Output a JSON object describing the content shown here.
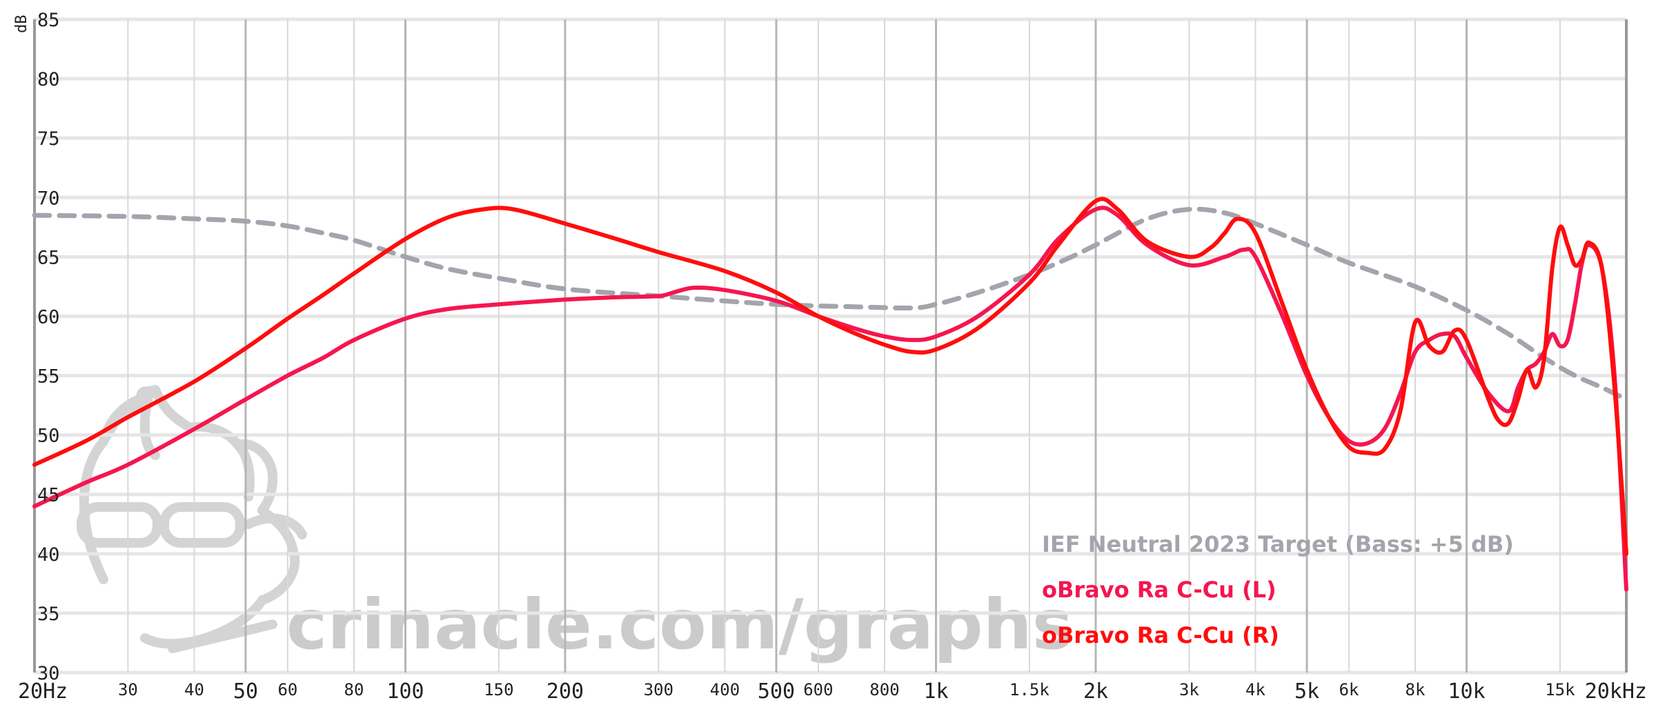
{
  "chart_data": {
    "type": "line",
    "xscale": "log",
    "xlim": [
      20,
      20000
    ],
    "ylim": [
      30,
      85
    ],
    "ylabel": "dB",
    "yticks": [
      "85",
      "80",
      "75",
      "70",
      "65",
      "60",
      "55",
      "50",
      "45",
      "40",
      "35",
      "30"
    ],
    "xticks": [
      {
        "v": 20,
        "label": "20Hz",
        "major": true
      },
      {
        "v": 30,
        "label": "30",
        "major": false
      },
      {
        "v": 40,
        "label": "40",
        "major": false
      },
      {
        "v": 50,
        "label": "50",
        "major": true
      },
      {
        "v": 60,
        "label": "60",
        "major": false
      },
      {
        "v": 80,
        "label": "80",
        "major": false
      },
      {
        "v": 100,
        "label": "100",
        "major": true
      },
      {
        "v": 150,
        "label": "150",
        "major": false
      },
      {
        "v": 200,
        "label": "200",
        "major": true
      },
      {
        "v": 300,
        "label": "300",
        "major": false
      },
      {
        "v": 400,
        "label": "400",
        "major": false
      },
      {
        "v": 500,
        "label": "500",
        "major": true
      },
      {
        "v": 600,
        "label": "600",
        "major": false
      },
      {
        "v": 800,
        "label": "800",
        "major": false
      },
      {
        "v": 1000,
        "label": "1k",
        "major": true
      },
      {
        "v": 1500,
        "label": "1.5k",
        "major": false
      },
      {
        "v": 2000,
        "label": "2k",
        "major": true
      },
      {
        "v": 3000,
        "label": "3k",
        "major": false
      },
      {
        "v": 4000,
        "label": "4k",
        "major": false
      },
      {
        "v": 5000,
        "label": "5k",
        "major": true
      },
      {
        "v": 6000,
        "label": "6k",
        "major": false
      },
      {
        "v": 8000,
        "label": "8k",
        "major": false
      },
      {
        "v": 10000,
        "label": "10k",
        "major": true
      },
      {
        "v": 15000,
        "label": "15k",
        "major": false
      },
      {
        "v": 20000,
        "label": "20kHz",
        "major": true
      }
    ],
    "legend_position": "bottom-right",
    "watermark": "crinacle.com/graphs",
    "series": [
      {
        "name": "IEF Neutral 2023 Target (Bass: +5 dB)",
        "color": "#a4a4ad",
        "dashed": true,
        "x": [
          20,
          30,
          40,
          50,
          60,
          70,
          80,
          100,
          120,
          150,
          200,
          300,
          500,
          700,
          900,
          1000,
          1200,
          1500,
          1800,
          2000,
          2500,
          3000,
          3500,
          4000,
          5000,
          6000,
          8000,
          10000,
          12000,
          14000,
          16000,
          18000,
          20000
        ],
        "y": [
          68.5,
          68.4,
          68.2,
          68.0,
          67.6,
          67.0,
          66.4,
          65.0,
          64.0,
          63.2,
          62.3,
          61.7,
          61.0,
          60.8,
          60.7,
          61.0,
          62.0,
          63.5,
          65.0,
          66.0,
          68.2,
          69.0,
          68.7,
          67.8,
          66.0,
          64.5,
          62.5,
          60.5,
          58.5,
          56.5,
          55.0,
          54.0,
          53.0
        ]
      },
      {
        "name": "oBravo Ra C-Cu (L)",
        "color": "#f5164f",
        "dashed": false,
        "x": [
          20,
          25,
          30,
          40,
          50,
          60,
          70,
          80,
          100,
          120,
          150,
          200,
          250,
          300,
          320,
          350,
          400,
          500,
          600,
          700,
          800,
          900,
          1000,
          1200,
          1500,
          1700,
          2000,
          2200,
          2500,
          3000,
          3500,
          3800,
          4000,
          4500,
          5000,
          5500,
          6000,
          6500,
          7000,
          7500,
          8000,
          8500,
          9000,
          9500,
          10000,
          11000,
          12000,
          12500,
          13000,
          13500,
          14000,
          14500,
          15000,
          15500,
          16000,
          16500,
          17000,
          18000,
          19000,
          20000
        ],
        "y": [
          44.0,
          46.0,
          47.5,
          50.5,
          53.0,
          55.0,
          56.5,
          58.0,
          59.8,
          60.6,
          61.0,
          61.4,
          61.6,
          61.7,
          62.0,
          62.4,
          62.2,
          61.3,
          60.0,
          59.0,
          58.3,
          58.0,
          58.3,
          60.0,
          63.5,
          66.5,
          69.0,
          68.5,
          66.0,
          64.3,
          65.0,
          65.6,
          65.0,
          60.0,
          55.0,
          51.5,
          49.5,
          49.3,
          50.5,
          53.5,
          57.0,
          58.0,
          58.5,
          58.3,
          56.5,
          53.5,
          52.0,
          54.0,
          55.5,
          56.0,
          57.0,
          58.5,
          57.5,
          58.0,
          61.0,
          64.5,
          66.0,
          64.0,
          55.0,
          37.0
        ]
      },
      {
        "name": "oBravo Ra C-Cu (R)",
        "color": "#ff0d0d",
        "dashed": false,
        "x": [
          20,
          25,
          30,
          40,
          50,
          60,
          70,
          80,
          100,
          120,
          140,
          160,
          200,
          250,
          300,
          400,
          500,
          600,
          700,
          800,
          900,
          1000,
          1200,
          1500,
          1700,
          2000,
          2200,
          2500,
          3000,
          3300,
          3500,
          3700,
          4000,
          4500,
          5000,
          5500,
          6000,
          6500,
          7000,
          7500,
          8000,
          8500,
          9000,
          9500,
          10000,
          11000,
          11500,
          12000,
          12500,
          13000,
          13500,
          14000,
          14500,
          15000,
          15500,
          16000,
          16500,
          17000,
          18000,
          19000,
          20000
        ],
        "y": [
          47.5,
          49.5,
          51.5,
          54.5,
          57.3,
          59.8,
          61.8,
          63.6,
          66.5,
          68.3,
          69.0,
          69.0,
          67.8,
          66.5,
          65.4,
          63.8,
          62.0,
          60.0,
          58.6,
          57.6,
          57.0,
          57.2,
          59.0,
          62.8,
          66.0,
          69.7,
          69.0,
          66.3,
          65.0,
          65.8,
          67.0,
          68.2,
          67.0,
          61.0,
          55.5,
          51.5,
          49.0,
          48.5,
          48.8,
          52.0,
          59.5,
          57.5,
          57.0,
          58.8,
          58.0,
          53.0,
          51.2,
          51.0,
          53.0,
          55.5,
          54.0,
          56.5,
          64.0,
          67.5,
          66.0,
          64.3,
          64.8,
          66.2,
          64.0,
          54.0,
          40.0
        ]
      }
    ]
  }
}
